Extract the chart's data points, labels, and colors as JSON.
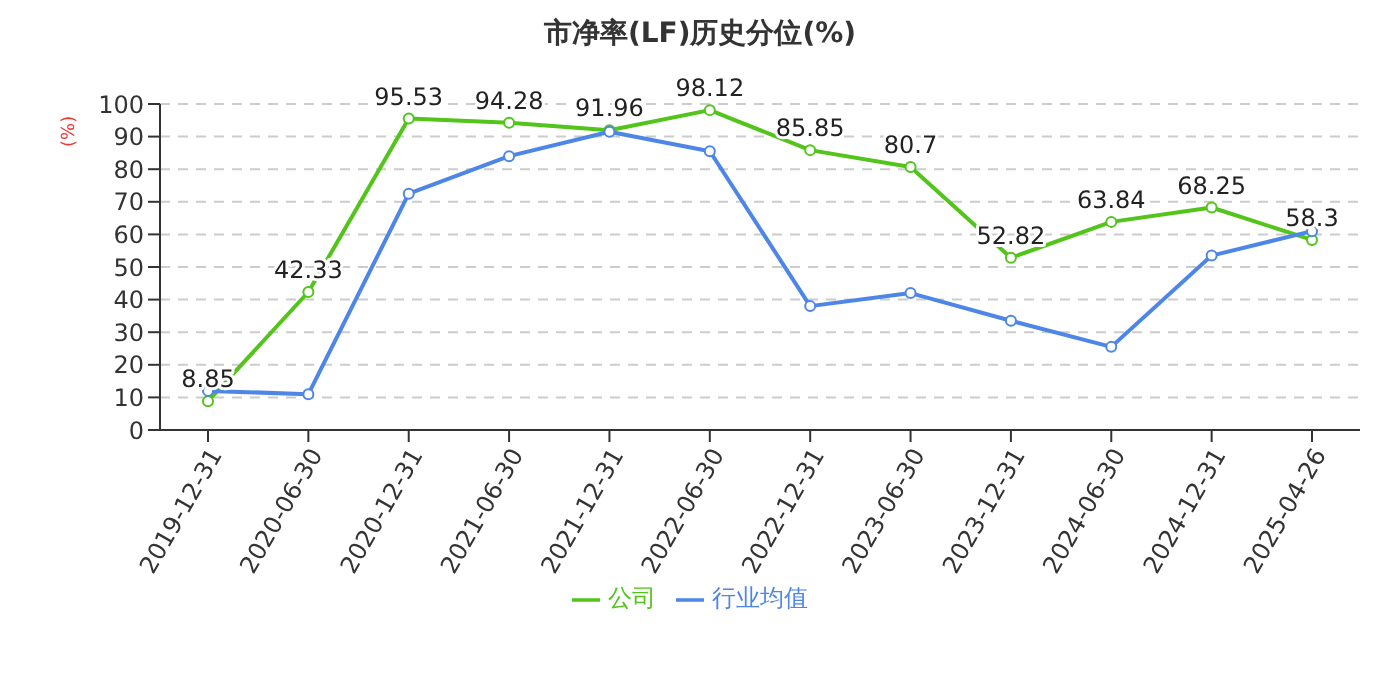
{
  "chart_data": {
    "type": "line",
    "title": "市净率(LF)历史分位(%)",
    "ylabel": "(%)",
    "categories": [
      "2019-12-31",
      "2020-06-30",
      "2020-12-31",
      "2021-06-30",
      "2021-12-31",
      "2022-06-30",
      "2022-12-31",
      "2023-06-30",
      "2023-12-31",
      "2024-06-30",
      "2024-12-31",
      "2025-04-26"
    ],
    "series": [
      {
        "name": "公司",
        "color": "#52c41a",
        "values": [
          8.85,
          42.33,
          95.53,
          94.28,
          91.96,
          98.12,
          85.85,
          80.7,
          52.82,
          63.84,
          68.25,
          58.3
        ],
        "value_labels": [
          "8.85",
          "42.33",
          "95.53",
          "94.28",
          "91.96",
          "98.12",
          "85.85",
          "80.7",
          "52.82",
          "63.84",
          "68.25",
          "58.3"
        ]
      },
      {
        "name": "行业均值",
        "color": "#4e86e8",
        "values": [
          12,
          11,
          72.5,
          84,
          91.5,
          85.5,
          38,
          42,
          33.5,
          25.5,
          53.5,
          61
        ]
      }
    ],
    "ylim": [
      0,
      100
    ],
    "yticks": [
      0,
      10,
      20,
      30,
      40,
      50,
      60,
      70,
      80,
      90,
      100
    ],
    "grid": "y",
    "legend": "bottom",
    "marker": "circle",
    "line_style": "solid"
  }
}
